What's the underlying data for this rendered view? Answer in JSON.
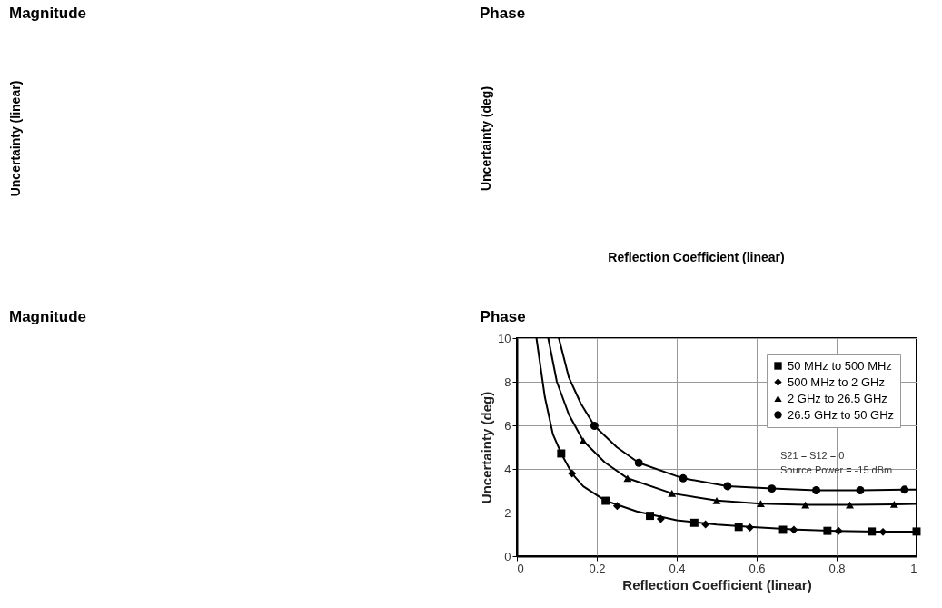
{
  "chart_data": [
    {
      "type": "other",
      "title": "Magnitude",
      "ylabel": "Uncertainty (linear)"
    },
    {
      "type": "other",
      "title": "Phase",
      "xlabel": "Reflection Coefficient (linear)",
      "ylabel": "Uncertainty (deg)"
    },
    {
      "type": "other",
      "title": "Magnitude"
    },
    {
      "type": "scatter",
      "title": "Phase",
      "xlabel": "Reflection Coefficient (linear)",
      "ylabel": "Uncertainty (deg)",
      "xlim": [
        0,
        1
      ],
      "ylim": [
        0,
        10
      ],
      "xticks": [
        0,
        0.2,
        0.4,
        0.6,
        0.8,
        1
      ],
      "yticks": [
        0,
        2,
        4,
        6,
        8,
        10
      ],
      "grid": true,
      "legend": "top right",
      "annotations": [
        "S21 = S12 = 0",
        "Source Power = -15 dBm"
      ],
      "series": [
        {
          "name": "50 MHz to 500 MHz",
          "color": "#000000",
          "marker": "square",
          "x": [
            0.111,
            0.222,
            0.333,
            0.444,
            0.555,
            0.666,
            0.777,
            0.888,
            1
          ],
          "values": [
            4.71,
            2.54,
            1.85,
            1.53,
            1.34,
            1.21,
            1.16,
            1.13,
            1.13
          ]
        },
        {
          "name": "500 MHz to 2 GHz",
          "color": "#000000",
          "marker": "diamond",
          "x": [
            0.138,
            0.251,
            0.36,
            0.472,
            0.583,
            0.693,
            0.805,
            0.916
          ],
          "values": [
            3.79,
            2.3,
            1.71,
            1.46,
            1.31,
            1.21,
            1.16,
            1.11
          ]
        },
        {
          "name": "2 GHz to 26.5 GHz",
          "color": "#000000",
          "marker": "triangle",
          "x": [
            0.166,
            0.277,
            0.388,
            0.5,
            0.61,
            0.722,
            0.833,
            0.944
          ],
          "values": [
            5.29,
            3.57,
            2.88,
            2.55,
            2.41,
            2.35,
            2.35,
            2.38
          ]
        },
        {
          "name": "26.5 GHz to 50 GHz",
          "color": "#000000",
          "marker": "circle",
          "x": [
            0.194,
            0.305,
            0.416,
            0.527,
            0.638,
            0.749,
            0.859,
            0.97
          ],
          "values": [
            5.98,
            4.28,
            3.57,
            3.21,
            3.1,
            3.02,
            3.02,
            3.05
          ]
        },
        {
          "type": "line",
          "color": "#000000",
          "x": [
            0.049,
            0.07,
            0.09,
            0.111,
            0.138,
            0.166,
            0.222,
            0.3,
            0.4,
            0.5,
            0.6,
            0.7,
            0.8,
            0.9,
            1
          ],
          "values": [
            10,
            7.3,
            5.6,
            4.71,
            3.79,
            3.2,
            2.54,
            2.05,
            1.65,
            1.45,
            1.32,
            1.22,
            1.16,
            1.13,
            1.13
          ]
        },
        {
          "type": "line",
          "color": "#000000",
          "x": [
            0.0785,
            0.1,
            0.13,
            0.166,
            0.22,
            0.277,
            0.388,
            0.5,
            0.61,
            0.722,
            0.833,
            0.944,
            1
          ],
          "values": [
            10,
            8.0,
            6.5,
            5.29,
            4.3,
            3.57,
            2.88,
            2.55,
            2.41,
            2.35,
            2.35,
            2.38,
            2.4
          ]
        },
        {
          "type": "line",
          "color": "#000000",
          "x": [
            0.105,
            0.13,
            0.16,
            0.194,
            0.25,
            0.305,
            0.416,
            0.527,
            0.638,
            0.749,
            0.859,
            0.97,
            1
          ],
          "values": [
            10,
            8.2,
            7.0,
            5.98,
            5.0,
            4.28,
            3.57,
            3.21,
            3.1,
            3.02,
            3.02,
            3.05,
            3.05
          ]
        }
      ]
    }
  ]
}
